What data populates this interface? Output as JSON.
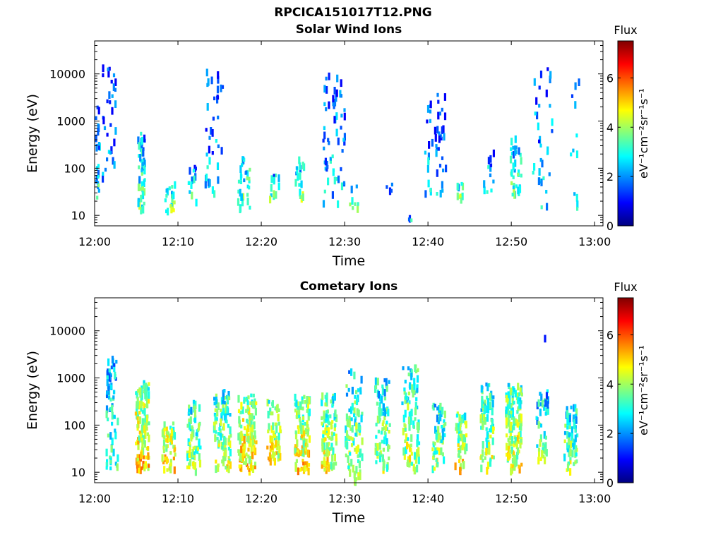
{
  "figure_title": "RPCICA151017T12.PNG",
  "chart_data": [
    {
      "type": "heatmap",
      "title": "Solar Wind Ions",
      "xlabel": "Time",
      "ylabel": "Energy (eV)",
      "y_scale": "log",
      "ylim": [
        6,
        50000
      ],
      "xlim_minutes": [
        0,
        61
      ],
      "x_ticks": [
        "12:00",
        "12:10",
        "12:20",
        "12:30",
        "12:40",
        "12:50",
        "13:00"
      ],
      "x_tick_minutes": [
        0,
        10,
        20,
        30,
        40,
        50,
        60
      ],
      "y_ticks": [
        "10",
        "100",
        "1000",
        "10000"
      ],
      "y_tick_values": [
        10,
        100,
        1000,
        10000
      ],
      "colorbar": {
        "label": "Flux",
        "unit_label": "eV⁻¹cm⁻²sr⁻¹s⁻¹",
        "range": [
          0,
          7.5
        ],
        "ticks": [
          0,
          2,
          4,
          6
        ]
      },
      "seed": 17,
      "clusters": [
        {
          "t": 0.2,
          "tw": 0.6,
          "e_min": 25,
          "e_max": 3000,
          "n": 30,
          "f_mean": 2.2
        },
        {
          "t": 1.6,
          "tw": 1.6,
          "e_min": 60,
          "e_max": 17000,
          "n": 32,
          "f_mean": 1.6
        },
        {
          "t": 5.5,
          "tw": 0.8,
          "e_min": 15,
          "e_max": 600,
          "n": 55,
          "f_mean": 2.8
        },
        {
          "t": 9.0,
          "tw": 1.4,
          "e_min": 12,
          "e_max": 60,
          "n": 18,
          "f_mean": 3.2
        },
        {
          "t": 11.6,
          "tw": 1.0,
          "e_min": 20,
          "e_max": 120,
          "n": 12,
          "f_mean": 2.6
        },
        {
          "t": 14.2,
          "tw": 2.2,
          "e_min": 30,
          "e_max": 15000,
          "n": 38,
          "f_mean": 1.8
        },
        {
          "t": 17.8,
          "tw": 1.4,
          "e_min": 15,
          "e_max": 200,
          "n": 34,
          "f_mean": 3.0
        },
        {
          "t": 21.6,
          "tw": 1.6,
          "e_min": 25,
          "e_max": 90,
          "n": 14,
          "f_mean": 2.8
        },
        {
          "t": 24.5,
          "tw": 1.0,
          "e_min": 25,
          "e_max": 200,
          "n": 18,
          "f_mean": 3.0
        },
        {
          "t": 28.6,
          "tw": 2.6,
          "e_min": 20,
          "e_max": 12000,
          "n": 60,
          "f_mean": 1.9
        },
        {
          "t": 31.0,
          "tw": 1.0,
          "e_min": 15,
          "e_max": 60,
          "n": 8,
          "f_mean": 2.4
        },
        {
          "t": 35.2,
          "tw": 0.8,
          "e_min": 30,
          "e_max": 60,
          "n": 4,
          "f_mean": 2.2
        },
        {
          "t": 37.8,
          "tw": 0.4,
          "e_min": 6,
          "e_max": 12,
          "n": 4,
          "f_mean": 2.6
        },
        {
          "t": 40.8,
          "tw": 2.6,
          "e_min": 30,
          "e_max": 6000,
          "n": 46,
          "f_mean": 1.7
        },
        {
          "t": 43.8,
          "tw": 0.8,
          "e_min": 25,
          "e_max": 60,
          "n": 10,
          "f_mean": 3.2
        },
        {
          "t": 47.2,
          "tw": 1.2,
          "e_min": 25,
          "e_max": 250,
          "n": 12,
          "f_mean": 2.4
        },
        {
          "t": 50.4,
          "tw": 1.4,
          "e_min": 30,
          "e_max": 500,
          "n": 36,
          "f_mean": 2.7
        },
        {
          "t": 53.6,
          "tw": 2.4,
          "e_min": 15,
          "e_max": 14000,
          "n": 34,
          "f_mean": 1.9
        },
        {
          "t": 57.4,
          "tw": 1.2,
          "e_min": 15,
          "e_max": 16000,
          "n": 12,
          "f_mean": 1.8
        }
      ]
    },
    {
      "type": "heatmap",
      "title": "Cometary Ions",
      "xlabel": "Time",
      "ylabel": "Energy (eV)",
      "y_scale": "log",
      "ylim": [
        6,
        50000
      ],
      "xlim_minutes": [
        0,
        61
      ],
      "x_ticks": [
        "12:00",
        "12:10",
        "12:20",
        "12:30",
        "12:40",
        "12:50",
        "13:00"
      ],
      "x_tick_minutes": [
        0,
        10,
        20,
        30,
        40,
        50,
        60
      ],
      "y_ticks": [
        "10",
        "100",
        "1000",
        "10000"
      ],
      "y_tick_values": [
        10,
        100,
        1000,
        10000
      ],
      "colorbar": {
        "label": "Flux",
        "unit_label": "eV⁻¹cm⁻²sr⁻¹s⁻¹",
        "range": [
          0,
          7.5
        ],
        "ticks": [
          0,
          2,
          4,
          6
        ]
      },
      "seed": 91,
      "clusters": [
        {
          "t": 2.0,
          "tw": 1.4,
          "e_min": 12,
          "e_max": 3000,
          "n": 70,
          "f_mean": 2.8
        },
        {
          "t": 5.6,
          "tw": 1.6,
          "e_min": 12,
          "e_max": 900,
          "n": 130,
          "f_mean": 4.2
        },
        {
          "t": 8.8,
          "tw": 1.6,
          "e_min": 12,
          "e_max": 120,
          "n": 60,
          "f_mean": 4.4
        },
        {
          "t": 11.8,
          "tw": 1.6,
          "e_min": 12,
          "e_max": 400,
          "n": 70,
          "f_mean": 3.4
        },
        {
          "t": 15.2,
          "tw": 2.0,
          "e_min": 12,
          "e_max": 600,
          "n": 100,
          "f_mean": 3.6
        },
        {
          "t": 18.2,
          "tw": 2.2,
          "e_min": 12,
          "e_max": 500,
          "n": 120,
          "f_mean": 4.3
        },
        {
          "t": 21.4,
          "tw": 1.8,
          "e_min": 18,
          "e_max": 400,
          "n": 60,
          "f_mean": 4.0
        },
        {
          "t": 24.8,
          "tw": 1.8,
          "e_min": 12,
          "e_max": 500,
          "n": 110,
          "f_mean": 4.1
        },
        {
          "t": 28.0,
          "tw": 1.8,
          "e_min": 12,
          "e_max": 500,
          "n": 100,
          "f_mean": 3.8
        },
        {
          "t": 31.0,
          "tw": 2.0,
          "e_min": 7,
          "e_max": 1600,
          "n": 90,
          "f_mean": 3.4
        },
        {
          "t": 34.4,
          "tw": 1.8,
          "e_min": 12,
          "e_max": 1200,
          "n": 80,
          "f_mean": 3.4
        },
        {
          "t": 37.8,
          "tw": 2.0,
          "e_min": 12,
          "e_max": 2000,
          "n": 100,
          "f_mean": 3.5
        },
        {
          "t": 41.2,
          "tw": 1.6,
          "e_min": 12,
          "e_max": 300,
          "n": 60,
          "f_mean": 3.4
        },
        {
          "t": 43.8,
          "tw": 1.4,
          "e_min": 12,
          "e_max": 200,
          "n": 60,
          "f_mean": 4.0
        },
        {
          "t": 47.0,
          "tw": 1.6,
          "e_min": 12,
          "e_max": 800,
          "n": 80,
          "f_mean": 3.5
        },
        {
          "t": 50.2,
          "tw": 2.0,
          "e_min": 12,
          "e_max": 800,
          "n": 140,
          "f_mean": 3.9
        },
        {
          "t": 53.6,
          "tw": 1.4,
          "e_min": 18,
          "e_max": 600,
          "n": 50,
          "f_mean": 3.0
        },
        {
          "t": 57.0,
          "tw": 1.6,
          "e_min": 12,
          "e_max": 300,
          "n": 70,
          "f_mean": 3.3
        },
        {
          "t": 54.0,
          "tw": 0.2,
          "e_min": 7500,
          "e_max": 9000,
          "n": 1,
          "f_mean": 1.6
        }
      ]
    }
  ]
}
